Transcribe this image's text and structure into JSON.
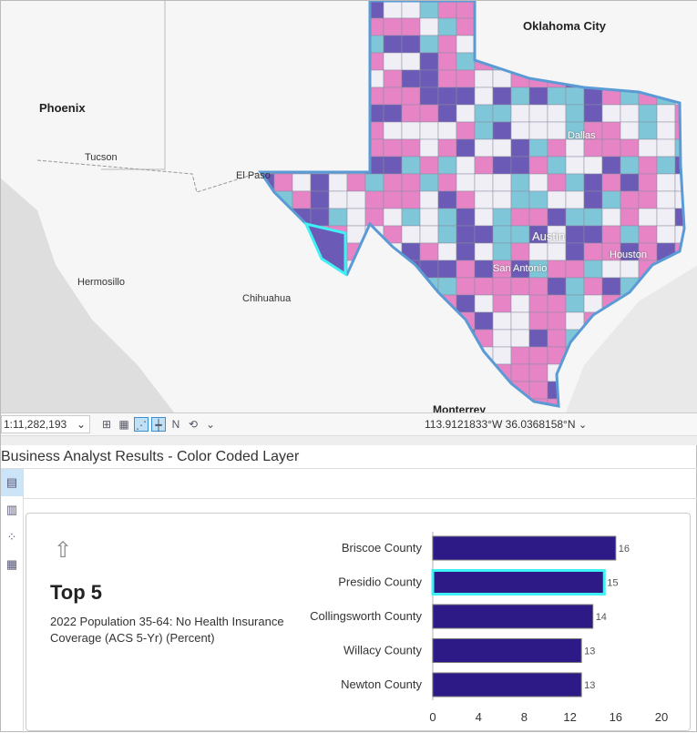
{
  "map": {
    "labels": [
      "Oklahoma City",
      "Phoenix",
      "Tucson",
      "El Paso",
      "Dallas",
      "Hermosillo",
      "Chihuahua",
      "Austin",
      "San Antonio",
      "Houston",
      "Monterrey"
    ],
    "colors": {
      "class1": "#6b5bb6",
      "class2": "#e684c6",
      "class3": "#7ec6d8",
      "class4": "#f1eff6",
      "border": "#5b9bd5",
      "highlight": "#3ff0f5"
    }
  },
  "toolbar": {
    "scale": "1:11,282,193",
    "coordinates": "113.9121833°W 36.0368158°N"
  },
  "panel": {
    "title": "Business Analyst Results - Color Coded Layer"
  },
  "card": {
    "heading": "Top 5",
    "description": "2022 Population 35-64: No Health Insurance Coverage (ACS 5-Yr) (Percent)"
  },
  "chart_data": {
    "type": "bar",
    "orientation": "horizontal",
    "categories": [
      "Briscoe County",
      "Presidio County",
      "Collingsworth County",
      "Willacy County",
      "Newton County"
    ],
    "values": [
      16,
      15,
      14,
      13,
      13
    ],
    "data_labels": [
      "16",
      "15",
      "14",
      "13",
      "13"
    ],
    "highlighted": "Presidio County",
    "xlim": [
      0,
      20
    ],
    "xticks": [
      "0",
      "4",
      "8",
      "12",
      "16",
      "20"
    ],
    "bar_color": "#2e1a87",
    "highlight_color": "#3ff0f5",
    "grid": false
  }
}
